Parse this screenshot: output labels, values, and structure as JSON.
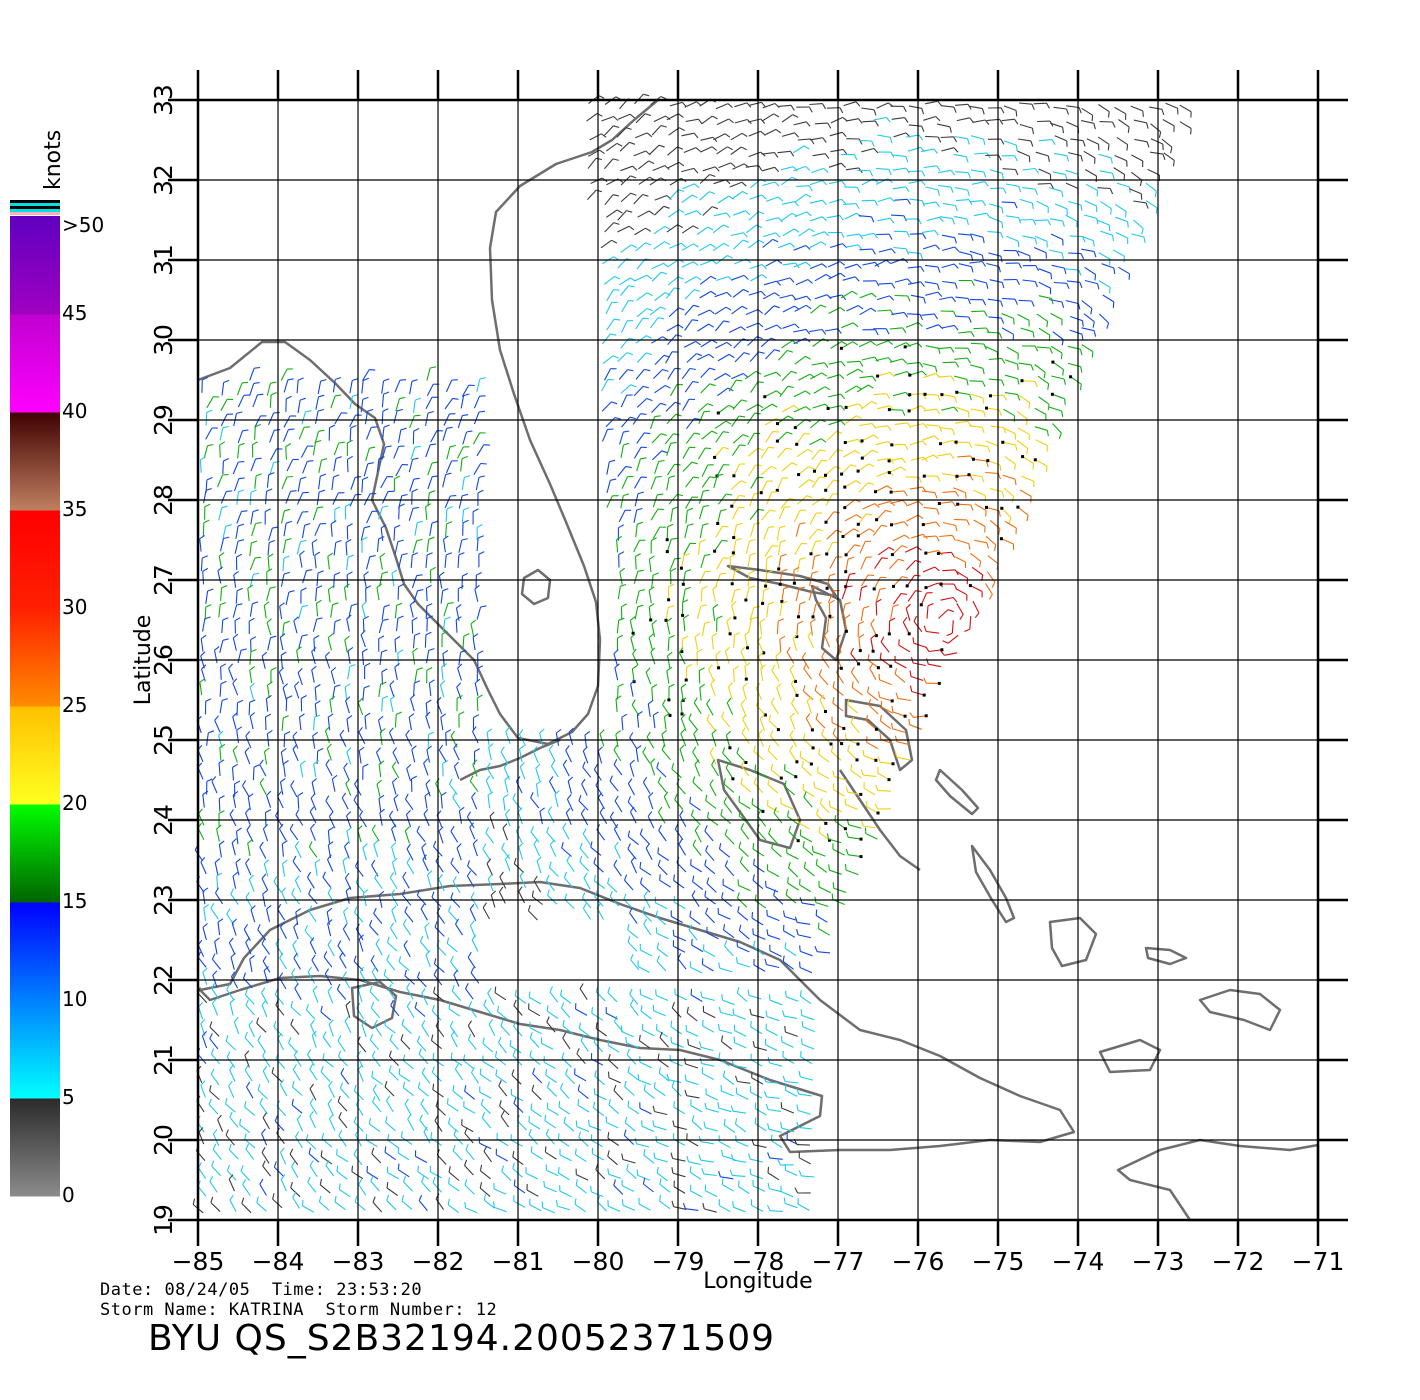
{
  "map": {
    "lon_range": [
      -85,
      -71
    ],
    "lat_range": [
      19,
      33
    ],
    "lon_ticks": [
      "−85",
      "−84",
      "−83",
      "−82",
      "−81",
      "−80",
      "−79",
      "−78",
      "−77",
      "−76",
      "−75",
      "−74",
      "−73",
      "−72",
      "−71"
    ],
    "lat_ticks": [
      "19",
      "20",
      "21",
      "22",
      "23",
      "24",
      "25",
      "26",
      "27",
      "28",
      "29",
      "30",
      "31",
      "32",
      "33"
    ],
    "x_label": "Longitude",
    "y_label": "Latitude",
    "grid": true,
    "land_outline_color": "#6e6e6e"
  },
  "legend": {
    "unit": "knots",
    "labels": [
      "0",
      "5",
      "10",
      "15",
      "20",
      "25",
      "30",
      "35",
      "40",
      "45",
      ">50"
    ],
    "bands": [
      {
        "from": 0,
        "to": 5,
        "colors": [
          "#8c8c8c",
          "#2a2a2a"
        ]
      },
      {
        "from": 5,
        "to": 10,
        "colors": [
          "#00ffff",
          "#0080ff"
        ]
      },
      {
        "from": 10,
        "to": 15,
        "colors": [
          "#0080ff",
          "#0000ff"
        ]
      },
      {
        "from": 15,
        "to": 20,
        "colors": [
          "#006400",
          "#00ff00"
        ]
      },
      {
        "from": 20,
        "to": 25,
        "colors": [
          "#ffff20",
          "#ffc000"
        ]
      },
      {
        "from": 25,
        "to": 30,
        "colors": [
          "#ff8c00",
          "#ff2000"
        ]
      },
      {
        "from": 30,
        "to": 35,
        "colors": [
          "#ff2000",
          "#ff0000"
        ]
      },
      {
        "from": 35,
        "to": 40,
        "colors": [
          "#c08060",
          "#400000"
        ]
      },
      {
        "from": 40,
        "to": 45,
        "colors": [
          "#ff00ff",
          "#c000d0"
        ]
      },
      {
        "from": 45,
        "to": 50,
        "colors": [
          "#a000c0",
          "#6000c0"
        ]
      }
    ]
  },
  "footer": {
    "date_label": "Date:",
    "date": "08/24/05",
    "time_label": "Time:",
    "time": "23:53:20",
    "storm_name_label": "Storm Name:",
    "storm_name": "KATRINA",
    "storm_number_label": "Storm Number:",
    "storm_number": "12",
    "product_id": "BYU QS_S2B32194.20052371509"
  }
}
